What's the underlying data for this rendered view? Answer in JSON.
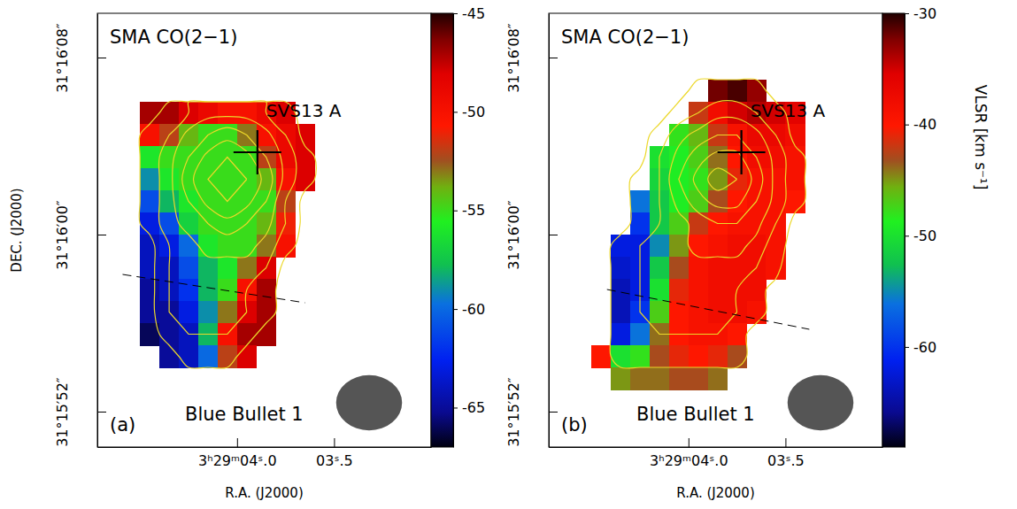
{
  "chart_data": [
    {
      "type": "heatmap",
      "title": "SMA CO(2−1)",
      "panel_label": "(a)",
      "annotation": "Blue Bullet 1",
      "xlabel": "R.A. (J2000)",
      "ylabel": "DEC. (J2000)",
      "xlim": [
        4.72,
        3.0
      ],
      "ylim": [
        50.4,
        70
      ],
      "xticks": [
        {
          "value": 4.0,
          "label": "3ʰ29ᵐ04ˢ.0"
        },
        {
          "value": 3.5,
          "label": "03ˢ.5"
        }
      ],
      "yticks": [
        {
          "value": 68,
          "label": "31°16′08″"
        },
        {
          "value": 60,
          "label": "31°16′00″"
        },
        {
          "value": 52,
          "label": "31°15′52″"
        }
      ],
      "x": [
        4.45,
        4.35,
        4.25,
        4.15,
        4.05,
        3.95,
        3.85,
        3.75,
        3.65
      ],
      "y": [
        65.5,
        64.5,
        63.5,
        62.5,
        61.5,
        60.5,
        59.5,
        58.5,
        57.5,
        56.5,
        55.5,
        54.5
      ],
      "cells": [
        [
          -47,
          -47,
          -48,
          -49,
          -50,
          -50,
          -49,
          -48,
          null
        ],
        [
          -50,
          -52,
          -54,
          -55,
          -55,
          -53,
          -50,
          -49,
          -48
        ],
        [
          -56,
          -55,
          -55,
          -55,
          -55,
          -55,
          -52,
          -49,
          -48
        ],
        [
          -59,
          -56,
          -55,
          -55,
          -55,
          -55,
          -54,
          -50,
          -48
        ],
        [
          -61,
          -58,
          -56,
          -55,
          -55,
          -55,
          -55,
          -52,
          null
        ],
        [
          -63,
          -61,
          -57,
          -55,
          -55,
          -55,
          -54,
          -51,
          null
        ],
        [
          -64,
          -63,
          -60,
          -56,
          -55,
          -55,
          -53,
          -50,
          null
        ],
        [
          -64,
          -64,
          -61,
          -58,
          -56,
          -53,
          -48,
          null,
          null
        ],
        [
          -65,
          -64,
          -62,
          -58,
          -55,
          -50,
          -47,
          null,
          null
        ],
        [
          -65,
          -65,
          -63,
          -59,
          -53,
          -48,
          -47,
          null,
          null
        ],
        [
          -66,
          -65,
          -64,
          -58,
          -50,
          -47,
          -47,
          null,
          null
        ],
        [
          null,
          -65,
          -64,
          -60,
          -52,
          -48,
          null,
          null,
          null
        ]
      ],
      "intensity": [
        [
          1,
          2,
          3,
          4,
          4,
          4,
          3,
          2,
          1
        ],
        [
          2,
          3,
          5,
          6,
          7,
          6,
          5,
          3,
          1
        ],
        [
          2,
          4,
          6,
          8,
          9,
          8,
          6,
          4,
          2
        ],
        [
          2,
          4,
          7,
          9,
          10,
          9,
          7,
          4,
          2
        ],
        [
          2,
          4,
          6,
          8,
          9,
          8,
          6,
          3,
          1
        ],
        [
          2,
          4,
          5,
          6,
          7,
          6,
          5,
          3,
          1
        ],
        [
          1,
          3,
          4,
          5,
          5,
          5,
          4,
          2,
          1
        ],
        [
          1,
          3,
          4,
          4,
          4,
          4,
          3,
          1,
          0
        ],
        [
          1,
          3,
          4,
          4,
          4,
          3,
          2,
          1,
          0
        ],
        [
          1,
          3,
          3,
          4,
          3,
          3,
          2,
          1,
          0
        ],
        [
          1,
          2,
          3,
          3,
          3,
          2,
          1,
          0,
          0
        ],
        [
          0,
          1,
          2,
          2,
          2,
          1,
          1,
          0,
          0
        ]
      ],
      "contour_levels": [
        1.5,
        3,
        4.5,
        6,
        7.5,
        9
      ],
      "colorbar": {
        "lim": [
          -67,
          -45
        ],
        "ticks": [
          -45,
          -50,
          -55,
          -60,
          -65
        ]
      },
      "source": {
        "label": "SVS13 A",
        "x": 3.895,
        "y": 63.72
      },
      "cut": {
        "x": [
          4.59,
          3.65
        ],
        "y": [
          58.2,
          56.92
        ]
      },
      "beam": {
        "width": 0.34,
        "height": 2.5
      }
    },
    {
      "type": "heatmap",
      "title": "SMA CO(2−1)",
      "panel_label": "(b)",
      "annotation": "Blue Bullet 1",
      "xlabel": "R.A. (J2000)",
      "xlim": [
        4.72,
        3.0
      ],
      "ylim": [
        50.4,
        70
      ],
      "xticks": [
        {
          "value": 4.0,
          "label": "3ʰ29ᵐ04ˢ.0"
        },
        {
          "value": 3.5,
          "label": "03ˢ.5"
        }
      ],
      "yticks": [
        {
          "value": 68,
          "label": "31°16′08″"
        },
        {
          "value": 60,
          "label": "31°16′00″"
        },
        {
          "value": 52,
          "label": "31°15′52″"
        }
      ],
      "x": [
        4.55,
        4.45,
        4.35,
        4.25,
        4.15,
        4.05,
        3.95,
        3.85,
        3.75,
        3.65,
        3.55,
        3.45
      ],
      "y": [
        66.5,
        65.5,
        64.5,
        63.5,
        62.5,
        61.5,
        60.5,
        59.5,
        58.5,
        57.5,
        56.5,
        55.5,
        54.5,
        53.5
      ],
      "cells": [
        [
          null,
          null,
          null,
          null,
          null,
          null,
          null,
          -32,
          -31,
          -33,
          null,
          null
        ],
        [
          null,
          null,
          null,
          null,
          null,
          null,
          -42,
          -38,
          -35,
          -34,
          -35,
          -36
        ],
        [
          null,
          null,
          null,
          null,
          null,
          -48,
          -46,
          -42,
          -39,
          -37,
          -37,
          -38
        ],
        [
          null,
          null,
          null,
          null,
          -50,
          -49,
          -47,
          -44,
          -40,
          -38,
          -38,
          -39
        ],
        [
          null,
          null,
          null,
          null,
          -51,
          -49,
          -48,
          -45,
          -41,
          -39,
          -39,
          -39
        ],
        [
          null,
          null,
          null,
          -56,
          -52,
          -49,
          -47,
          -43,
          -40,
          -39,
          -39,
          -40
        ],
        [
          null,
          null,
          null,
          -60,
          -52,
          -47,
          -42,
          -40,
          -39,
          -39,
          -39,
          null
        ],
        [
          null,
          null,
          -62,
          -62,
          -55,
          -45,
          -40,
          -39,
          -38,
          -38,
          -39,
          null
        ],
        [
          null,
          null,
          -63,
          -62,
          -52,
          -43,
          -39,
          -38,
          -38,
          -38,
          -39,
          null
        ],
        [
          null,
          null,
          -64,
          -62,
          -50,
          -41,
          -39,
          -38,
          -38,
          -38,
          null,
          null
        ],
        [
          null,
          null,
          -64,
          -60,
          -47,
          -40,
          -39,
          -38,
          -38,
          -39,
          null,
          null
        ],
        [
          null,
          null,
          -62,
          -56,
          -44,
          -40,
          -39,
          -39,
          -40,
          null,
          null,
          null
        ],
        [
          null,
          -40,
          -50,
          -48,
          -43,
          -41,
          -40,
          -41,
          -43,
          null,
          null,
          null
        ],
        [
          null,
          null,
          -45,
          -44,
          -44,
          -43,
          -43,
          -44,
          null,
          null,
          null,
          null
        ]
      ],
      "intensity": [
        [
          0,
          0,
          0,
          0,
          1,
          1,
          2,
          2,
          2,
          2,
          1,
          0
        ],
        [
          0,
          0,
          0,
          1,
          1,
          2,
          3,
          4,
          4,
          3,
          2,
          1
        ],
        [
          0,
          0,
          0,
          1,
          2,
          4,
          5,
          6,
          6,
          5,
          3,
          1
        ],
        [
          0,
          0,
          1,
          1,
          3,
          5,
          7,
          8,
          8,
          6,
          4,
          2
        ],
        [
          0,
          0,
          1,
          2,
          3,
          6,
          8,
          10,
          9,
          7,
          4,
          2
        ],
        [
          0,
          0,
          1,
          2,
          3,
          5,
          7,
          8,
          8,
          6,
          4,
          2
        ],
        [
          0,
          0,
          1,
          2,
          3,
          4,
          5,
          6,
          6,
          5,
          3,
          1
        ],
        [
          0,
          1,
          2,
          3,
          4,
          4,
          5,
          5,
          5,
          4,
          2,
          1
        ],
        [
          0,
          1,
          2,
          3,
          4,
          4,
          4,
          4,
          4,
          3,
          2,
          0
        ],
        [
          0,
          1,
          2,
          3,
          3,
          4,
          4,
          4,
          3,
          2,
          1,
          0
        ],
        [
          0,
          1,
          2,
          3,
          3,
          3,
          3,
          3,
          3,
          2,
          1,
          0
        ],
        [
          0,
          1,
          2,
          2,
          3,
          3,
          3,
          3,
          2,
          1,
          0,
          0
        ],
        [
          0,
          1,
          2,
          2,
          2,
          2,
          2,
          2,
          2,
          1,
          0,
          0
        ],
        [
          0,
          0,
          1,
          1,
          1,
          1,
          1,
          1,
          1,
          0,
          0,
          0
        ]
      ],
      "contour_levels": [
        1.5,
        3,
        4.5,
        6,
        7.5,
        9
      ],
      "colorbar": {
        "lim": [
          -69,
          -30
        ],
        "ticks": [
          -30,
          -40,
          -50,
          -60
        ],
        "label": "VLSR [km s⁻¹]"
      },
      "source": {
        "label": "SVS13 A",
        "x": 3.727,
        "y": 63.72
      },
      "cut": {
        "x": [
          4.42,
          3.377
        ],
        "y": [
          57.52,
          55.72
        ]
      },
      "beam": {
        "width": 0.34,
        "height": 2.5
      }
    }
  ]
}
